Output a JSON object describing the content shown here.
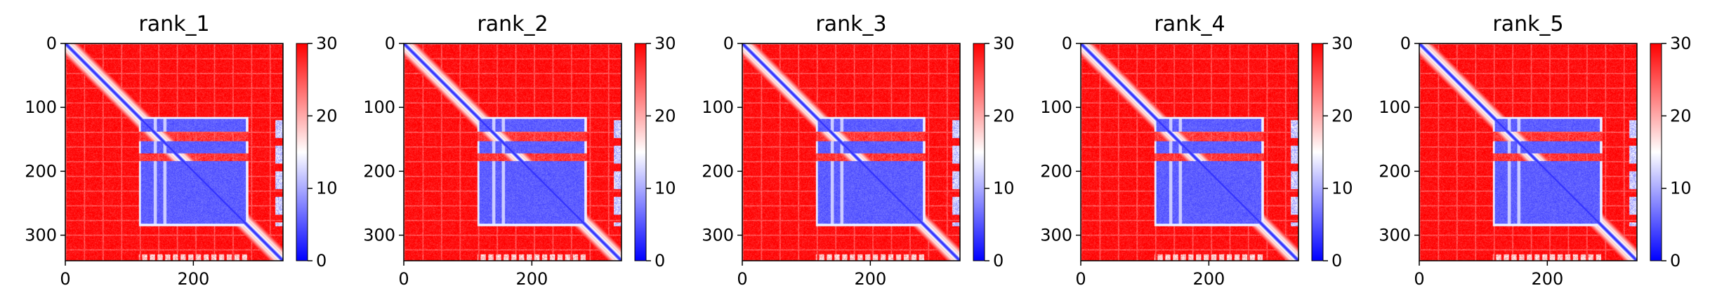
{
  "colors": {
    "low": "#0000ff",
    "mid": "#ffffff",
    "high": "#ff0000",
    "axis": "#000000",
    "background": "#ffffff"
  },
  "chart_data": [
    {
      "type": "heatmap",
      "title": "rank_1",
      "xlabel": "",
      "ylabel": "",
      "xlim": [
        0,
        340
      ],
      "ylim": [
        340,
        0
      ],
      "x_ticks": [
        "0",
        "200"
      ],
      "y_ticks": [
        "0",
        "100",
        "200",
        "300"
      ],
      "colorbar": {
        "ticks": [
          "0",
          "10",
          "20",
          "30"
        ],
        "range": [
          0,
          30
        ],
        "colormap": "bwr"
      },
      "structure": {
        "size": 340,
        "diagonal_value": 2,
        "background_value": 30,
        "block_range": [
          115,
          285
        ],
        "block_value": 4,
        "block_gaps": [
          [
            138,
            152
          ],
          [
            172,
            183
          ]
        ],
        "block_column_gaps": [
          140,
          155
        ],
        "edge_strip": [
          [
            115,
            140
          ],
          [
            330,
            340
          ]
        ]
      }
    },
    {
      "type": "heatmap",
      "title": "rank_2",
      "xlabel": "",
      "ylabel": "",
      "xlim": [
        0,
        340
      ],
      "ylim": [
        340,
        0
      ],
      "x_ticks": [
        "0",
        "200"
      ],
      "y_ticks": [
        "0",
        "100",
        "200",
        "300"
      ],
      "colorbar": {
        "ticks": [
          "0",
          "10",
          "20",
          "30"
        ],
        "range": [
          0,
          30
        ],
        "colormap": "bwr"
      },
      "structure": {
        "size": 340,
        "diagonal_value": 2,
        "background_value": 30,
        "block_range": [
          115,
          285
        ],
        "block_value": 4,
        "block_gaps": [
          [
            138,
            152
          ],
          [
            172,
            183
          ]
        ],
        "block_column_gaps": [
          140,
          155
        ],
        "edge_strip": [
          [
            115,
            140
          ],
          [
            330,
            340
          ]
        ]
      }
    },
    {
      "type": "heatmap",
      "title": "rank_3",
      "xlabel": "",
      "ylabel": "",
      "xlim": [
        0,
        340
      ],
      "ylim": [
        340,
        0
      ],
      "x_ticks": [
        "0",
        "200"
      ],
      "y_ticks": [
        "0",
        "100",
        "200",
        "300"
      ],
      "colorbar": {
        "ticks": [
          "0",
          "10",
          "20",
          "30"
        ],
        "range": [
          0,
          30
        ],
        "colormap": "bwr"
      },
      "structure": {
        "size": 340,
        "diagonal_value": 2,
        "background_value": 30,
        "block_range": [
          115,
          285
        ],
        "block_value": 4,
        "block_gaps": [
          [
            138,
            152
          ],
          [
            172,
            183
          ]
        ],
        "block_column_gaps": [
          140,
          155
        ],
        "edge_strip": [
          [
            115,
            140
          ],
          [
            330,
            340
          ]
        ]
      }
    },
    {
      "type": "heatmap",
      "title": "rank_4",
      "xlabel": "",
      "ylabel": "",
      "xlim": [
        0,
        340
      ],
      "ylim": [
        340,
        0
      ],
      "x_ticks": [
        "0",
        "200"
      ],
      "y_ticks": [
        "0",
        "100",
        "200",
        "300"
      ],
      "colorbar": {
        "ticks": [
          "0",
          "10",
          "20",
          "30"
        ],
        "range": [
          0,
          30
        ],
        "colormap": "bwr"
      },
      "structure": {
        "size": 340,
        "diagonal_value": 2,
        "background_value": 30,
        "block_range": [
          115,
          285
        ],
        "block_value": 4,
        "block_gaps": [
          [
            138,
            152
          ],
          [
            172,
            183
          ]
        ],
        "block_column_gaps": [
          140,
          155
        ],
        "edge_strip": [
          [
            115,
            140
          ],
          [
            330,
            340
          ]
        ]
      }
    },
    {
      "type": "heatmap",
      "title": "rank_5",
      "xlabel": "",
      "ylabel": "",
      "xlim": [
        0,
        340
      ],
      "ylim": [
        340,
        0
      ],
      "x_ticks": [
        "0",
        "200"
      ],
      "y_ticks": [
        "0",
        "100",
        "200",
        "300"
      ],
      "colorbar": {
        "ticks": [
          "0",
          "10",
          "20",
          "30"
        ],
        "range": [
          0,
          30
        ],
        "colormap": "bwr"
      },
      "structure": {
        "size": 340,
        "diagonal_value": 2,
        "background_value": 30,
        "block_range": [
          115,
          285
        ],
        "block_value": 4,
        "block_gaps": [
          [
            138,
            152
          ],
          [
            172,
            183
          ]
        ],
        "block_column_gaps": [
          140,
          155
        ],
        "edge_strip": [
          [
            115,
            140
          ],
          [
            330,
            340
          ]
        ]
      }
    }
  ]
}
